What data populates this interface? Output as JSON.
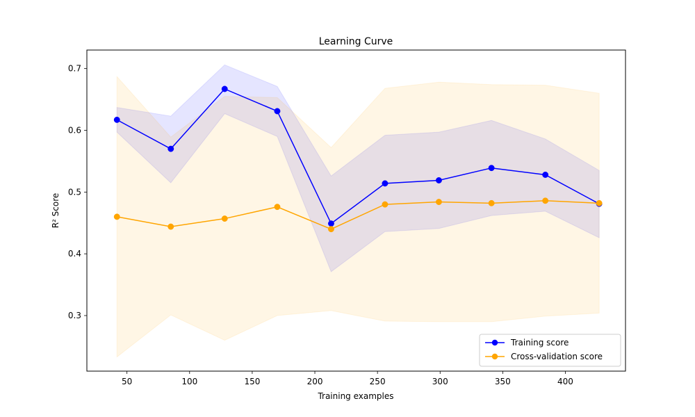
{
  "chart_data": {
    "type": "line",
    "title": "Learning Curve",
    "xlabel": "Training examples",
    "ylabel": "R² Score",
    "xlim": [
      18,
      448
    ],
    "ylim": [
      0.21,
      0.73
    ],
    "xticks": [
      50,
      100,
      150,
      200,
      250,
      300,
      350,
      400
    ],
    "xtick_labels": [
      "50",
      "100",
      "150",
      "200",
      "250",
      "300",
      "350",
      "400"
    ],
    "yticks": [
      0.3,
      0.4,
      0.5,
      0.6,
      0.7
    ],
    "ytick_labels": [
      "0.3",
      "0.4",
      "0.5",
      "0.6",
      "0.7"
    ],
    "grid": false,
    "legend_position": "lower-right",
    "x": [
      42,
      85,
      128,
      170,
      213,
      256,
      299,
      341,
      384,
      427
    ],
    "series": [
      {
        "name": "Training score",
        "color": "#0000ff",
        "marker": "circle",
        "values": [
          0.617,
          0.57,
          0.667,
          0.631,
          0.449,
          0.514,
          0.519,
          0.539,
          0.528,
          0.481
        ],
        "band_lower": [
          0.597,
          0.515,
          0.627,
          0.59,
          0.371,
          0.436,
          0.441,
          0.462,
          0.469,
          0.426
        ],
        "band_upper": [
          0.637,
          0.623,
          0.706,
          0.671,
          0.526,
          0.592,
          0.597,
          0.616,
          0.586,
          0.535
        ],
        "band_color": "#0000ff",
        "band_opacity": 0.1
      },
      {
        "name": "Cross-validation score",
        "color": "#ffa500",
        "marker": "circle",
        "values": [
          0.46,
          0.444,
          0.457,
          0.476,
          0.44,
          0.48,
          0.484,
          0.482,
          0.486,
          0.482
        ],
        "band_lower": [
          0.233,
          0.301,
          0.26,
          0.3,
          0.308,
          0.291,
          0.29,
          0.29,
          0.299,
          0.304
        ],
        "band_upper": [
          0.687,
          0.589,
          0.655,
          0.653,
          0.572,
          0.668,
          0.678,
          0.674,
          0.673,
          0.66
        ],
        "band_color": "#ffa500",
        "band_opacity": 0.1
      }
    ]
  }
}
